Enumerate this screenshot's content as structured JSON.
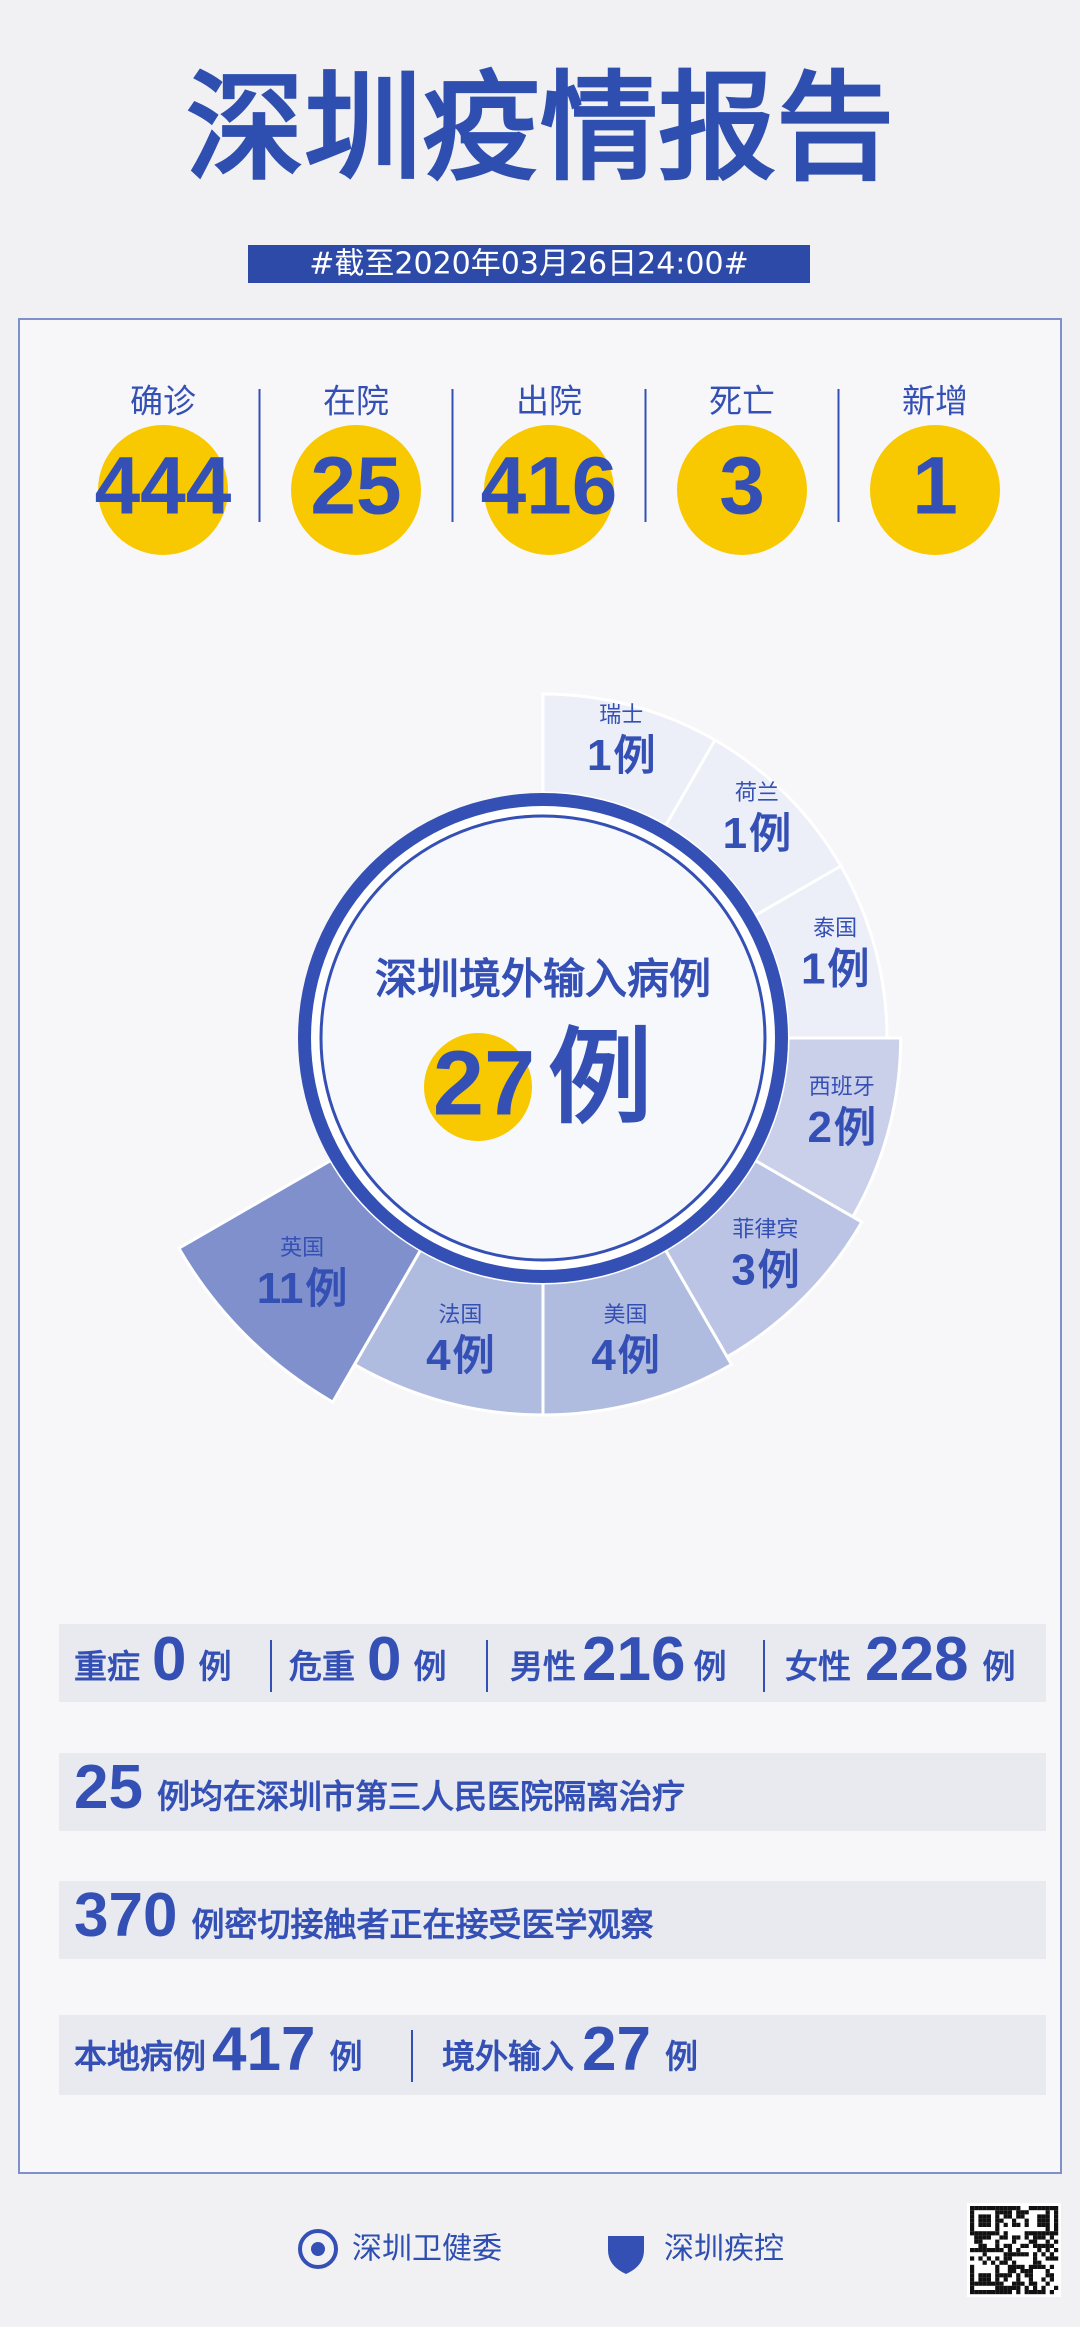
{
  "header": {
    "title": "深圳疫情报告",
    "date": "#截至2020年03月26日24:00#"
  },
  "unit": "例",
  "stats": [
    {
      "label": "确诊",
      "value": 444
    },
    {
      "label": "在院",
      "value": 25
    },
    {
      "label": "出院",
      "value": 416
    },
    {
      "label": "死亡",
      "value": 3
    },
    {
      "label": "新增",
      "value": 1
    }
  ],
  "imported": {
    "title": "深圳境外输入病例",
    "total": 27,
    "countries": [
      {
        "name": "瑞士",
        "count": 1
      },
      {
        "name": "荷兰",
        "count": 1
      },
      {
        "name": "泰国",
        "count": 1
      },
      {
        "name": "西班牙",
        "count": 2
      },
      {
        "name": "菲律宾",
        "count": 3
      },
      {
        "name": "美国",
        "count": 4
      },
      {
        "name": "法国",
        "count": 4
      },
      {
        "name": "英国",
        "count": 11
      }
    ]
  },
  "rows": {
    "severe": {
      "label": "重症",
      "value": 0
    },
    "critical": {
      "label": "危重",
      "value": 0
    },
    "male": {
      "label": "男性",
      "value": 216
    },
    "female": {
      "label": "女性",
      "value": 228
    },
    "hospital": {
      "value": 25,
      "text": "例均在深圳市第三人民医院隔离治疗"
    },
    "contacts": {
      "value": 370,
      "text": "例密切接触者正在接受医学观察"
    },
    "local": {
      "label": "本地病例",
      "value": 417
    },
    "abroad": {
      "label": "境外输入",
      "value": 27
    }
  },
  "footer": {
    "org1": "深圳卫健委",
    "org2": "深圳疾控"
  }
}
